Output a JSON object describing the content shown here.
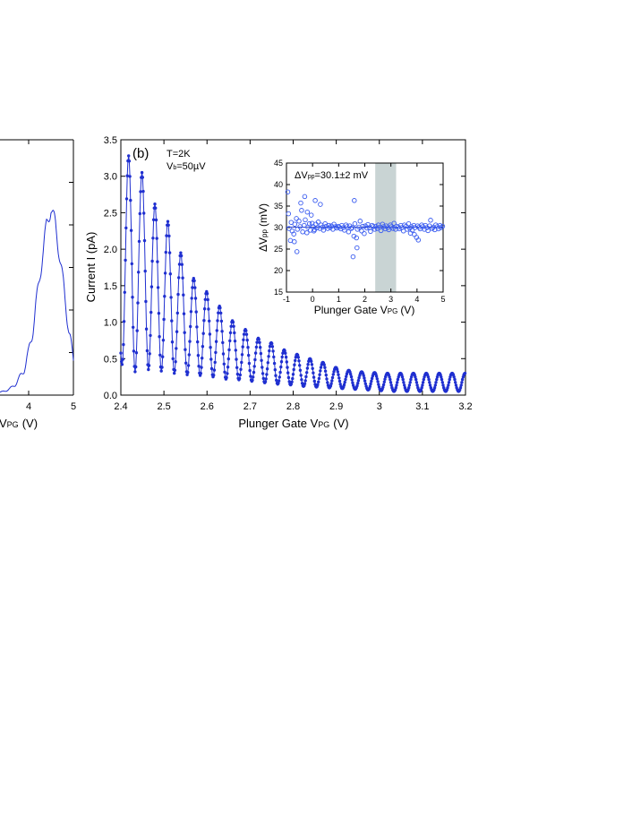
{
  "chart_data": [
    {
      "panel": "left (partially visible)",
      "type": "line",
      "xlabel_visible_fragment": "V",
      "xlabel_sub": "PG",
      "xlabel_unit": "(V)",
      "xticks": [
        "4",
        "5"
      ],
      "xlim": [
        3.0,
        5.0
      ],
      "ylim": [
        0,
        3.0
      ],
      "series_color": "#1f2fd0",
      "envelope": {
        "x": [
          3.0,
          3.5,
          3.7,
          3.9,
          4.0,
          4.1,
          4.2,
          4.3,
          4.4,
          4.5,
          4.6,
          4.7,
          4.8,
          4.9,
          5.0
        ],
        "y": [
          0.0,
          0.05,
          0.12,
          0.3,
          0.5,
          0.8,
          1.2,
          1.6,
          2.0,
          2.2,
          2.0,
          1.6,
          1.2,
          0.75,
          0.4
        ]
      }
    },
    {
      "panel": "(b)",
      "type": "line",
      "panel_label": "(b)",
      "annotations": {
        "temperature": "T=2K",
        "bias_prefix": "V",
        "bias_sub": "b",
        "bias_value": "=50µV"
      },
      "xlabel_main": "Plunger Gate V",
      "xlabel_sub": "PG",
      "xlabel_unit": "(V)",
      "ylabel": "Current I (pA)",
      "xlim": [
        2.4,
        3.2
      ],
      "ylim": [
        0.0,
        3.5
      ],
      "xticks": [
        "2.4",
        "2.5",
        "2.6",
        "2.7",
        "2.8",
        "2.9",
        "3",
        "3.1",
        "3.2"
      ],
      "yticks": [
        "0.0",
        "0.5",
        "1.0",
        "1.5",
        "2.0",
        "2.5",
        "3.0",
        "3.5"
      ],
      "series_color": "#1f2fd0",
      "peaks": {
        "x": [
          2.388,
          2.418,
          2.449,
          2.479,
          2.509,
          2.539,
          2.569,
          2.599,
          2.629,
          2.659,
          2.689,
          2.719,
          2.749,
          2.779,
          2.809,
          2.839,
          2.869,
          2.899,
          2.929,
          2.959,
          2.989,
          3.019,
          3.049,
          3.079,
          3.109,
          3.139,
          3.169,
          3.199
        ],
        "y": [
          2.05,
          3.28,
          3.05,
          2.62,
          2.38,
          1.95,
          1.6,
          1.42,
          1.22,
          1.02,
          0.9,
          0.78,
          0.72,
          0.62,
          0.56,
          0.5,
          0.45,
          0.38,
          0.34,
          0.32,
          0.31,
          0.3,
          0.3,
          0.3,
          0.3,
          0.3,
          0.3,
          0.3
        ]
      },
      "valleys": {
        "x": [
          2.403,
          2.433,
          2.464,
          2.494,
          2.524,
          2.554,
          2.584,
          2.614,
          2.644,
          2.674,
          2.704,
          2.734,
          2.764,
          2.794,
          2.824,
          2.854,
          2.884,
          2.914,
          2.944,
          2.974,
          3.004,
          3.034,
          3.064,
          3.094,
          3.124,
          3.154,
          3.184
        ],
        "y": [
          0.42,
          0.32,
          0.35,
          0.33,
          0.3,
          0.28,
          0.27,
          0.25,
          0.22,
          0.21,
          0.19,
          0.17,
          0.15,
          0.14,
          0.12,
          0.11,
          0.1,
          0.09,
          0.08,
          0.07,
          0.06,
          0.05,
          0.05,
          0.05,
          0.05,
          0.05,
          0.05
        ]
      }
    },
    {
      "panel": "(b) inset",
      "type": "scatter",
      "annotation": "ΔV",
      "annotation_sub": "pp",
      "annotation_value": "=30.1±2 mV",
      "ylabel_prefix": "ΔV",
      "ylabel_sub": "pp",
      "ylabel_unit": "(mV)",
      "xlabel_main": "Plunger Gate V",
      "xlabel_sub": "PG",
      "xlabel_unit": "(V)",
      "xlim": [
        -1,
        5
      ],
      "ylim": [
        15,
        45
      ],
      "xticks": [
        "-1",
        "0",
        "1",
        "2",
        "3",
        "4",
        "5"
      ],
      "yticks": [
        "15",
        "20",
        "25",
        "30",
        "35",
        "40",
        "45"
      ],
      "mean_line": 30.1,
      "shaded_region": [
        2.4,
        3.2
      ],
      "marker_color": "#3a5cf0",
      "shade_color": "#c9d4d4",
      "x": [
        -0.95,
        -0.9,
        -0.85,
        -0.82,
        -0.78,
        -0.72,
        -0.68,
        -0.62,
        -0.58,
        -0.52,
        -0.48,
        -0.42,
        -0.38,
        -0.32,
        -0.28,
        -0.22,
        -0.18,
        -0.12,
        -0.08,
        -0.02,
        0.02,
        0.08,
        0.12,
        0.18,
        0.22,
        0.28,
        0.32,
        0.38,
        0.42,
        0.48,
        0.52,
        0.58,
        0.62,
        0.68,
        0.72,
        0.78,
        0.82,
        0.88,
        0.92,
        0.98,
        1.02,
        1.08,
        1.12,
        1.18,
        1.22,
        1.28,
        1.32,
        1.38,
        1.42,
        1.48,
        1.52,
        1.58,
        1.62,
        1.68,
        1.72,
        1.78,
        1.82,
        1.88,
        1.92,
        1.98,
        2.02,
        2.08,
        2.12,
        2.18,
        2.22,
        2.28,
        2.32,
        2.38,
        2.42,
        2.48,
        2.52,
        2.58,
        2.62,
        2.68,
        2.72,
        2.78,
        2.82,
        2.88,
        2.92,
        2.98,
        3.02,
        3.08,
        3.12,
        3.18,
        3.22,
        3.28,
        3.32,
        3.38,
        3.42,
        3.48,
        3.52,
        3.58,
        3.62,
        3.68,
        3.72,
        3.78,
        3.82,
        3.88,
        3.92,
        3.98,
        4.02,
        4.08,
        4.12,
        4.18,
        4.22,
        4.28,
        4.32,
        4.38,
        4.42,
        4.48,
        4.52,
        4.58,
        4.62,
        4.68,
        4.72,
        4.78,
        4.82,
        4.88,
        4.92,
        4.98,
        -0.92,
        -0.7,
        -0.45,
        -0.3,
        -0.05,
        0.1,
        0.3,
        1.55,
        1.7,
        1.6,
        -0.6,
        0.05,
        3.75,
        3.9,
        4.05,
        -0.2
      ],
      "y": [
        38.3,
        29.8,
        27.0,
        31.2,
        29.2,
        28.5,
        30.8,
        32.1,
        29.6,
        31.5,
        30.2,
        34.0,
        29.0,
        30.5,
        31.8,
        28.8,
        30.1,
        30.9,
        29.4,
        31.0,
        30.2,
        29.5,
        30.8,
        30.0,
        31.3,
        29.8,
        30.6,
        30.1,
        29.4,
        30.9,
        30.3,
        29.8,
        30.5,
        30.0,
        30.4,
        29.6,
        30.8,
        30.2,
        29.9,
        30.3,
        30.1,
        29.7,
        30.5,
        30.0,
        29.4,
        30.6,
        30.2,
        29.0,
        30.4,
        29.8,
        30.0,
        28.0,
        30.9,
        27.6,
        29.6,
        30.1,
        31.5,
        29.2,
        30.3,
        28.6,
        30.4,
        29.9,
        30.7,
        30.0,
        29.1,
        30.5,
        30.2,
        29.6,
        30.3,
        29.8,
        30.6,
        30.1,
        29.3,
        30.8,
        30.2,
        29.7,
        30.4,
        30.0,
        29.5,
        30.6,
        30.2,
        29.8,
        31.0,
        29.6,
        30.3,
        30.1,
        29.7,
        30.5,
        30.0,
        29.2,
        30.6,
        30.3,
        29.6,
        30.9,
        29.9,
        30.2,
        29.4,
        30.5,
        30.0,
        27.7,
        30.4,
        30.1,
        29.7,
        30.6,
        30.2,
        29.6,
        30.5,
        30.0,
        29.3,
        30.4,
        31.7,
        29.8,
        30.1,
        29.5,
        30.6,
        30.2,
        29.7,
        30.5,
        30.0,
        30.3,
        33.2,
        26.7,
        35.7,
        37.2,
        32.9,
        36.3,
        35.4,
        23.2,
        25.3,
        36.3,
        24.4,
        29.2,
        28.7,
        28.4,
        27.1,
        33.6
      ]
    }
  ]
}
